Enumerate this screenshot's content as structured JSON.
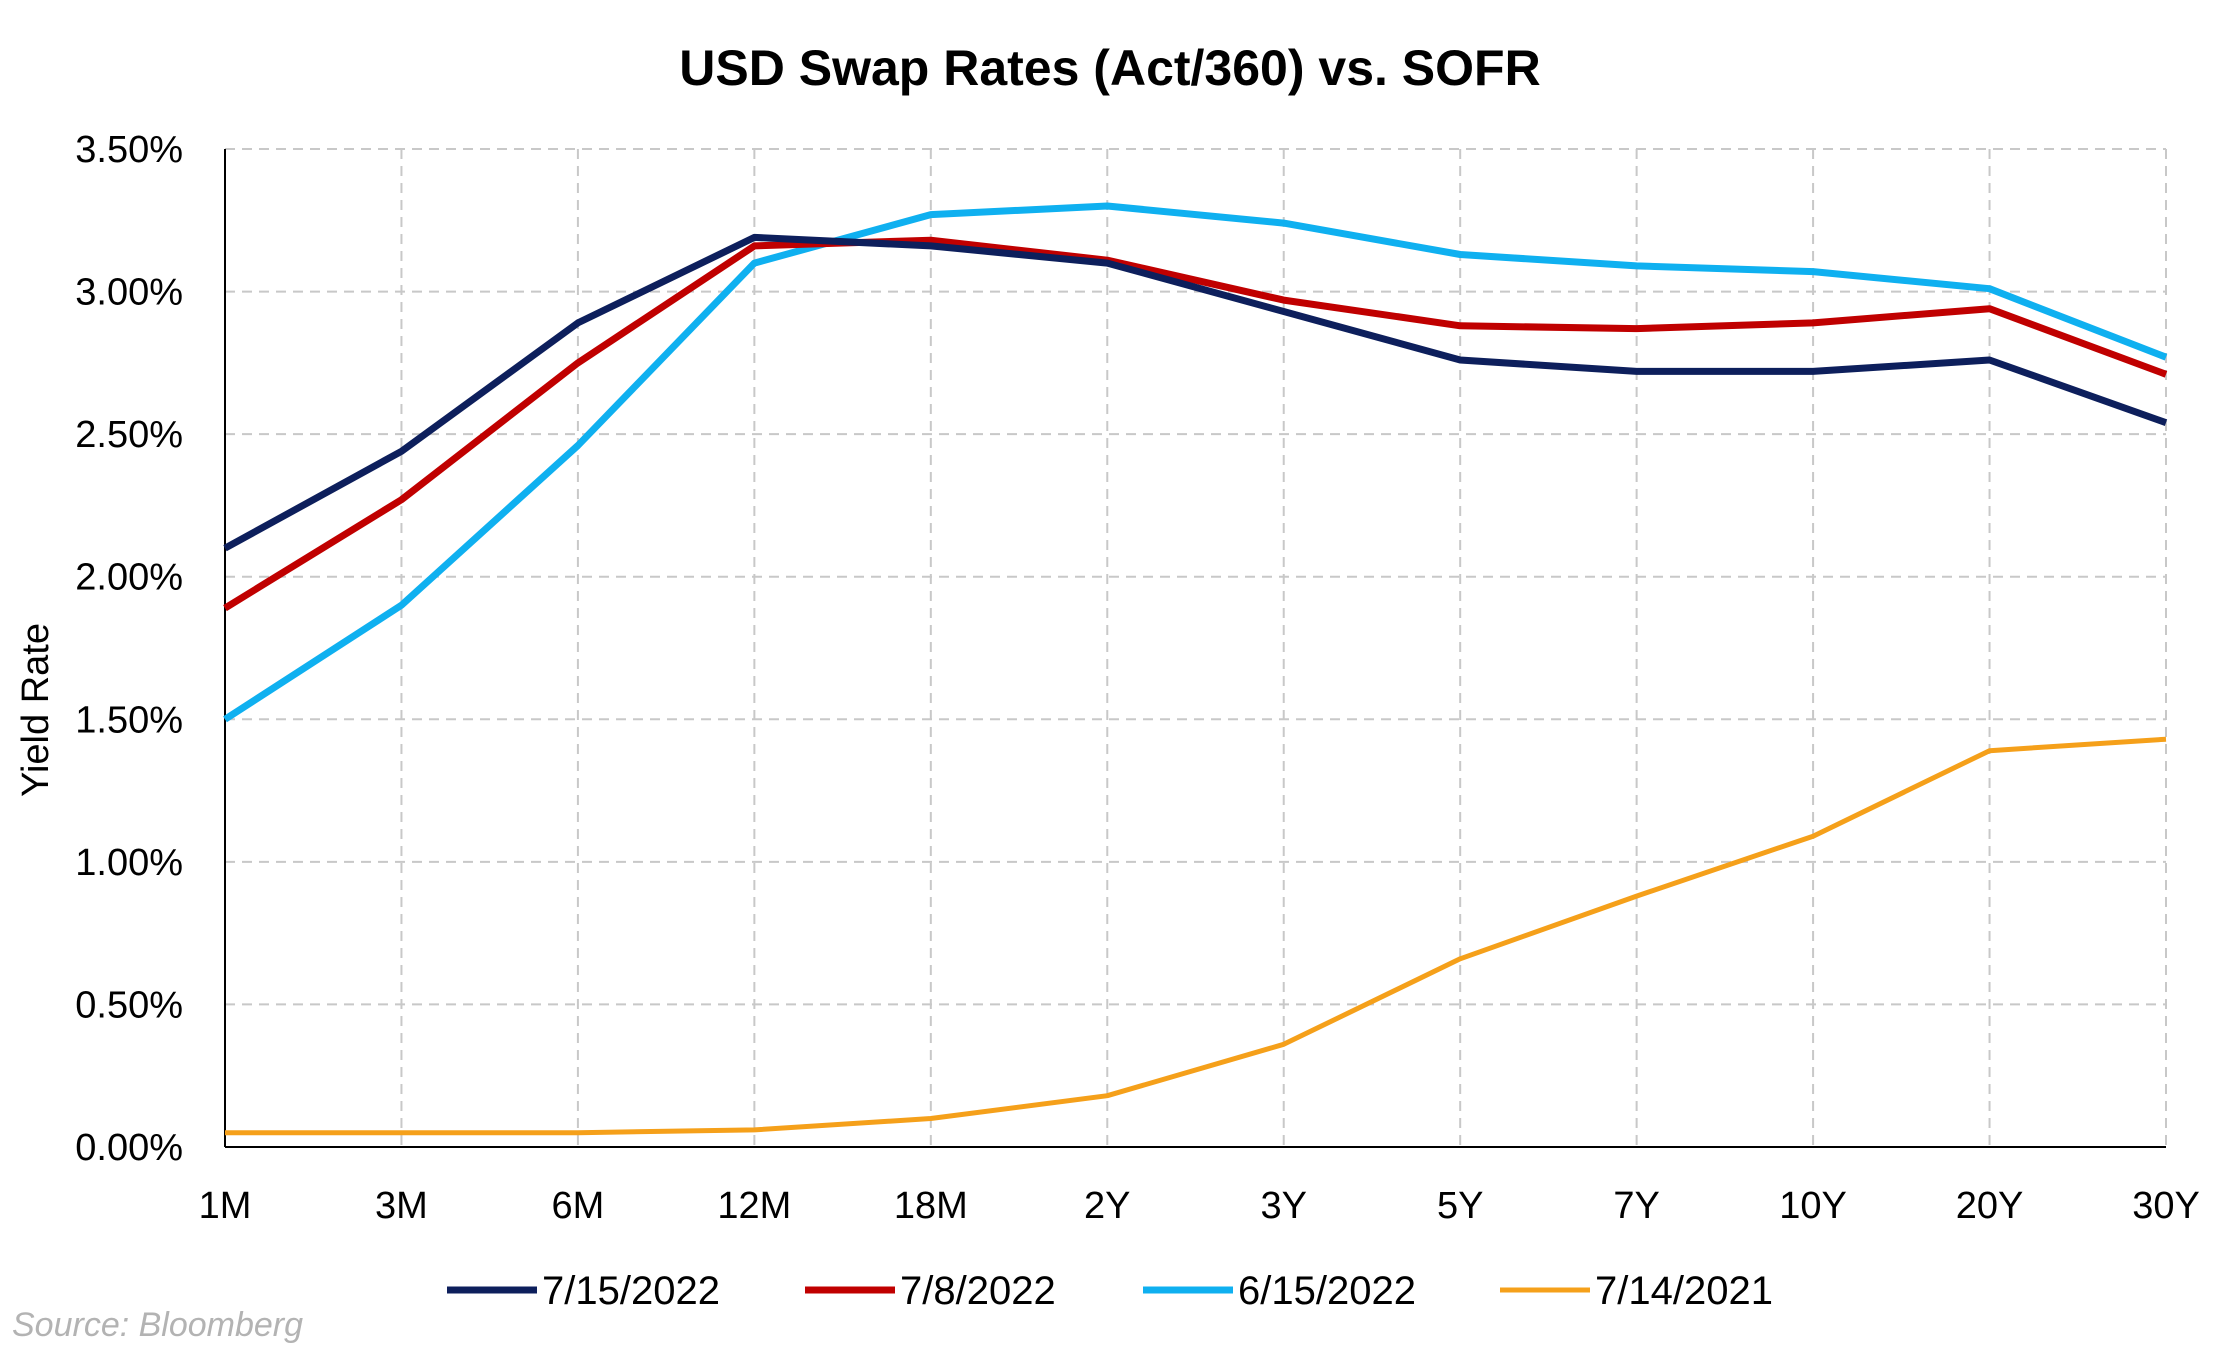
{
  "chart_data": {
    "type": "line",
    "title": "USD Swap Rates (Act/360) vs. SOFR",
    "ylabel": "Yield Rate",
    "xlabel": "",
    "categories": [
      "1M",
      "3M",
      "6M",
      "12M",
      "18M",
      "2Y",
      "3Y",
      "5Y",
      "7Y",
      "10Y",
      "20Y",
      "30Y"
    ],
    "ylim": [
      0,
      3.5
    ],
    "yticks": [
      0,
      0.5,
      1.0,
      1.5,
      2.0,
      2.5,
      3.0,
      3.5
    ],
    "ytick_labels": [
      "0.00%",
      "0.50%",
      "1.00%",
      "1.50%",
      "2.00%",
      "2.50%",
      "3.00%",
      "3.50%"
    ],
    "grid": true,
    "legend_position": "bottom",
    "series": [
      {
        "name": "7/15/2022",
        "color": "#0d1f5c",
        "values": [
          2.1,
          2.44,
          2.89,
          3.19,
          3.16,
          3.1,
          2.93,
          2.76,
          2.72,
          2.72,
          2.76,
          2.54
        ]
      },
      {
        "name": "7/8/2022",
        "color": "#c00000",
        "values": [
          1.89,
          2.27,
          2.75,
          3.16,
          3.18,
          3.11,
          2.97,
          2.88,
          2.87,
          2.89,
          2.94,
          2.71
        ]
      },
      {
        "name": "6/15/2022",
        "color": "#0fb0f0",
        "values": [
          1.5,
          1.9,
          2.46,
          3.1,
          3.27,
          3.3,
          3.24,
          3.13,
          3.09,
          3.07,
          3.01,
          2.77
        ]
      },
      {
        "name": "7/14/2021",
        "color": "#f5a01a",
        "values": [
          0.05,
          0.05,
          0.05,
          0.06,
          0.1,
          0.18,
          0.36,
          0.66,
          0.88,
          1.09,
          1.39,
          1.43
        ]
      }
    ],
    "source": "Source: Bloomberg"
  },
  "colors": {
    "grid": "#c8c8c8",
    "axis": "#000000",
    "background": "#ffffff"
  }
}
